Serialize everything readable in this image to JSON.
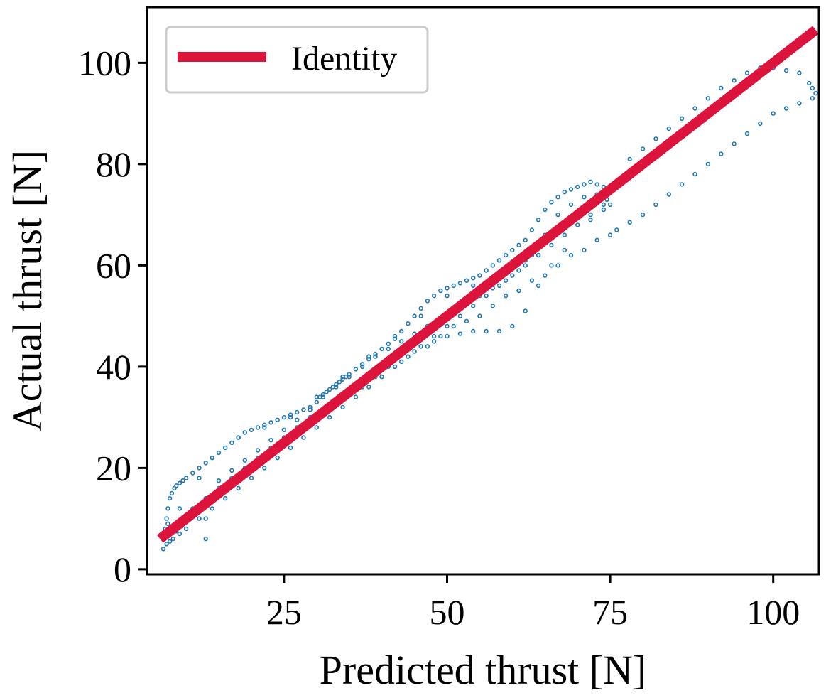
{
  "chart_data": {
    "type": "scatter",
    "title": "",
    "xlabel": "Predicted thrust [N]",
    "ylabel": "Actual thrust [N]",
    "xlim": [
      4,
      107
    ],
    "ylim": [
      -1,
      111
    ],
    "xticks": [
      25,
      50,
      75,
      100
    ],
    "yticks": [
      0,
      20,
      40,
      60,
      80,
      100
    ],
    "xtick_labels": [
      "25",
      "50",
      "75",
      "100"
    ],
    "ytick_labels": [
      "0",
      "20",
      "40",
      "60",
      "80",
      "100"
    ],
    "grid": false,
    "legend": {
      "placement": "top-left",
      "entries": [
        "Identity"
      ]
    },
    "colors": {
      "scatter": "#1f77b4",
      "identity": "#dc143c"
    },
    "identity_line": {
      "label": "Identity",
      "x": [
        6,
        106.5
      ],
      "y": [
        6,
        106.5
      ]
    },
    "scatter": {
      "name": "",
      "x": [
        6.5,
        6.6,
        6.8,
        7.0,
        7.2,
        7.5,
        7.8,
        8.2,
        8.5,
        9.0,
        9.5,
        10.0,
        11.0,
        12.0,
        13.0,
        14.0,
        15.0,
        16.0,
        17.0,
        18.0,
        19.0,
        20.0,
        21.0,
        22.0,
        23.0,
        24.0,
        25.0,
        26.0,
        27.0,
        28.0,
        29.0,
        30.0,
        30.5,
        31.0,
        31.5,
        32.0,
        32.5,
        33.0,
        33.5,
        34.0,
        34.5,
        35.0,
        36.0,
        37.0,
        38.0,
        39.0,
        40.0,
        41.0,
        42.0,
        43.0,
        44.0,
        45.0,
        46.0,
        47.0,
        48.0,
        49.0,
        50.0,
        51.0,
        52.0,
        53.0,
        54.0,
        55.0,
        56.0,
        57.0,
        58.0,
        59.0,
        60.0,
        61.0,
        62.0,
        63.0,
        64.0,
        65.0,
        66.0,
        67.0,
        68.0,
        69.0,
        70.0,
        71.0,
        72.0,
        73.0,
        74.0,
        74.5,
        75.0,
        78.0,
        80.0,
        82.0,
        84.0,
        86.0,
        88.0,
        90.0,
        92.0,
        94.0,
        96.0,
        98.0,
        100.0,
        102.0,
        104.0,
        105.5,
        106.0,
        106.5,
        7.0,
        8.0,
        9.0,
        10.0,
        12.0,
        14.0,
        16.0,
        18.0,
        20.0,
        22.0,
        24.0,
        26.0,
        28.0,
        30.0,
        32.0,
        34.0,
        36.0,
        38.0,
        40.0,
        42.0,
        44.0,
        46.0,
        48.0,
        50.0,
        52.0,
        54.0,
        56.0,
        58.0,
        60.0,
        62.0,
        64.0,
        66.0,
        68.0,
        70.0,
        72.0,
        74.0,
        76.0,
        78.0,
        80.0,
        82.0,
        84.0,
        86.0,
        88.0,
        90.0,
        92.0,
        94.0,
        96.0,
        98.0,
        100.0,
        102.0,
        104.0,
        106.0,
        7.5,
        8.5,
        9.5,
        11.0,
        13.0,
        15.0,
        17.0,
        19.0,
        21.0,
        23.0,
        25.0,
        27.0,
        29.0,
        31.0,
        33.0,
        35.0,
        37.0,
        39.0,
        41.0,
        43.0,
        45.0,
        47.0,
        49.0,
        51.0,
        53.0,
        55.0,
        57.0,
        59.0,
        61.0,
        63.0,
        65.0,
        67.0,
        69.0,
        71.0,
        73.0,
        75.0,
        7.2,
        9.0,
        12.0,
        14.0,
        18.0,
        22.0,
        26.0,
        30.0,
        34.0,
        38.0,
        42.0,
        46.0,
        50.0,
        54.0,
        58.0,
        60.0,
        62.0,
        64.0,
        13.0,
        13.0,
        40.0,
        42.0,
        44.0,
        46.0,
        48.0,
        50.0,
        52.0,
        54.0,
        56.0,
        58.0,
        60.0,
        62.0,
        64.0,
        66.0,
        68.0,
        72.0,
        74.0,
        74.5,
        73.0,
        71.0,
        69.0,
        67.0,
        65.0,
        63.0,
        61.0,
        59.0,
        57.0,
        55.0,
        53.0,
        51.0,
        49.0,
        47.0,
        45.0,
        43.0,
        41.0,
        39.0,
        37.0,
        35.0,
        33.0,
        31.0,
        29.0,
        27.0,
        25.0,
        23.0,
        21.0,
        19.0,
        17.0,
        15.0
      ],
      "y": [
        4.0,
        6.0,
        8.0,
        10.0,
        12.0,
        14.0,
        15.0,
        16.0,
        16.5,
        17.0,
        17.5,
        18.0,
        19.0,
        20.0,
        21.0,
        22.0,
        23.0,
        24.0,
        25.0,
        26.0,
        27.0,
        27.5,
        28.0,
        28.5,
        29.0,
        29.5,
        30.0,
        30.5,
        31.0,
        31.5,
        32.0,
        33.0,
        34.0,
        34.5,
        35.0,
        35.5,
        36.0,
        36.5,
        37.0,
        37.5,
        38.0,
        38.5,
        39.5,
        40.5,
        41.5,
        42.5,
        43.5,
        44.5,
        45.5,
        47.0,
        48.5,
        50.0,
        51.5,
        53.0,
        54.0,
        55.0,
        55.5,
        56.0,
        56.5,
        57.0,
        57.5,
        58.0,
        59.0,
        60.0,
        61.0,
        62.0,
        63.0,
        64.0,
        65.0,
        67.0,
        69.0,
        71.0,
        72.5,
        73.5,
        74.5,
        75.0,
        75.5,
        76.0,
        76.5,
        76.0,
        75.5,
        74.0,
        72.0,
        81.0,
        83.0,
        85.0,
        87.0,
        89.0,
        91.0,
        93.0,
        95.0,
        96.5,
        98.0,
        99.0,
        99.0,
        98.5,
        98.0,
        96.0,
        95.0,
        94.0,
        5.0,
        6.0,
        7.0,
        8.0,
        10.0,
        12.0,
        14.0,
        16.0,
        18.0,
        20.0,
        22.0,
        24.0,
        26.0,
        28.0,
        30.0,
        32.0,
        34.0,
        36.0,
        38.0,
        40.0,
        42.0,
        44.0,
        46.0,
        48.0,
        50.0,
        52.0,
        54.0,
        56.0,
        58.0,
        60.0,
        62.0,
        64.0,
        66.0,
        68.0,
        70.0,
        72.0,
        67.0,
        68.5,
        70.0,
        72.0,
        74.0,
        76.0,
        78.0,
        80.0,
        82.0,
        84.0,
        86.0,
        88.0,
        90.0,
        91.0,
        92.0,
        93.0,
        5.5,
        7.5,
        9.0,
        12.0,
        14.0,
        16.0,
        18.0,
        20.0,
        22.0,
        24.0,
        26.0,
        28.0,
        30.0,
        31.0,
        33.0,
        35.0,
        36.0,
        38.0,
        40.0,
        41.0,
        43.0,
        44.0,
        46.0,
        48.0,
        49.0,
        50.0,
        52.0,
        54.0,
        55.0,
        57.0,
        58.0,
        60.0,
        62.0,
        63.0,
        65.0,
        66.0,
        9.0,
        12.0,
        18.0,
        22.0,
        26.0,
        28.0,
        30.0,
        34.0,
        38.0,
        42.0,
        46.0,
        50.0,
        54.0,
        56.0,
        58.0,
        60.0,
        61.0,
        62.0,
        6.0,
        10.0,
        38.0,
        40.0,
        42.0,
        44.0,
        45.0,
        46.0,
        46.5,
        47.0,
        47.0,
        47.0,
        48.0,
        51.0,
        56.0,
        60.0,
        63.0,
        69.0,
        71.0,
        73.0,
        74.0,
        73.5,
        72.0,
        70.0,
        66.0,
        62.0,
        59.0,
        57.0,
        55.5,
        54.0,
        52.5,
        51.0,
        49.5,
        48.0,
        46.5,
        45.0,
        43.5,
        42.0,
        40.0,
        38.0,
        36.0,
        34.0,
        31.5,
        29.5,
        27.5,
        25.5,
        23.5,
        21.5,
        19.5,
        17.5
      ]
    }
  }
}
